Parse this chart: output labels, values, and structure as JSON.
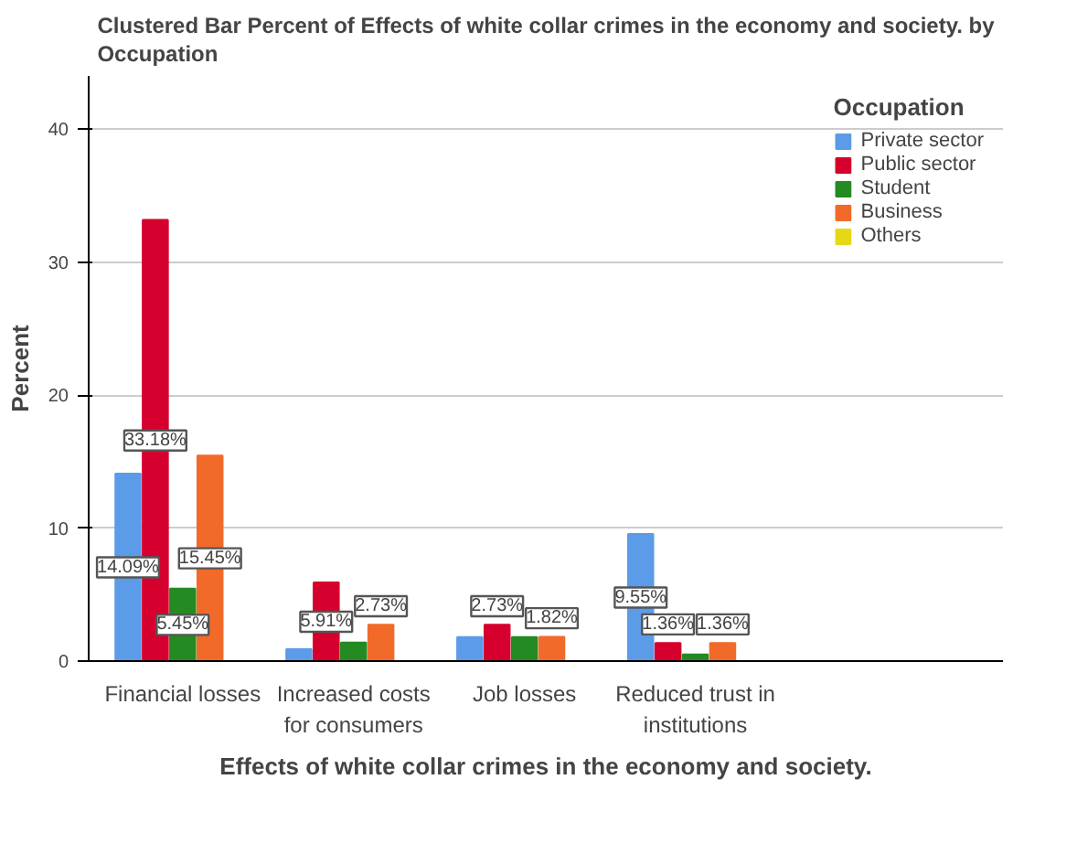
{
  "chart_data": {
    "type": "bar",
    "title": "Clustered Bar Percent of Effects of white collar crimes in the economy and society. by Occupation",
    "xlabel": "Effects of white collar crimes in the economy and society.",
    "ylabel": "Percent",
    "legend_title": "Occupation",
    "categories": [
      "Financial losses",
      "Increased costs for consumers",
      "Job losses",
      "Reduced trust in institutions"
    ],
    "series": [
      {
        "name": "Private sector",
        "color": "#5b9be8",
        "values": [
          14.09,
          0.9,
          1.8,
          9.55
        ],
        "value_labels": [
          "14.09%",
          null,
          null,
          "9.55%"
        ]
      },
      {
        "name": "Public sector",
        "color": "#d5002d",
        "values": [
          33.18,
          5.91,
          2.73,
          1.36
        ],
        "value_labels": [
          "33.18%",
          "5.91%",
          "2.73%",
          "1.36%"
        ]
      },
      {
        "name": "Student",
        "color": "#238b22",
        "values": [
          5.45,
          1.4,
          1.8,
          0.5
        ],
        "value_labels": [
          "5.45%",
          null,
          null,
          null
        ]
      },
      {
        "name": "Business",
        "color": "#f26a2a",
        "values": [
          15.45,
          2.73,
          1.82,
          1.36
        ],
        "value_labels": [
          "15.45%",
          "2.73%",
          "1.82%",
          "1.36%"
        ]
      },
      {
        "name": "Others",
        "color": "#e5d818",
        "values": [
          0,
          0,
          0,
          0
        ],
        "value_labels": [
          null,
          null,
          null,
          null
        ]
      }
    ],
    "ylim": [
      0,
      44
    ],
    "yticks": [
      0,
      10,
      20,
      30,
      40
    ],
    "grid": "y",
    "legend": "right"
  }
}
